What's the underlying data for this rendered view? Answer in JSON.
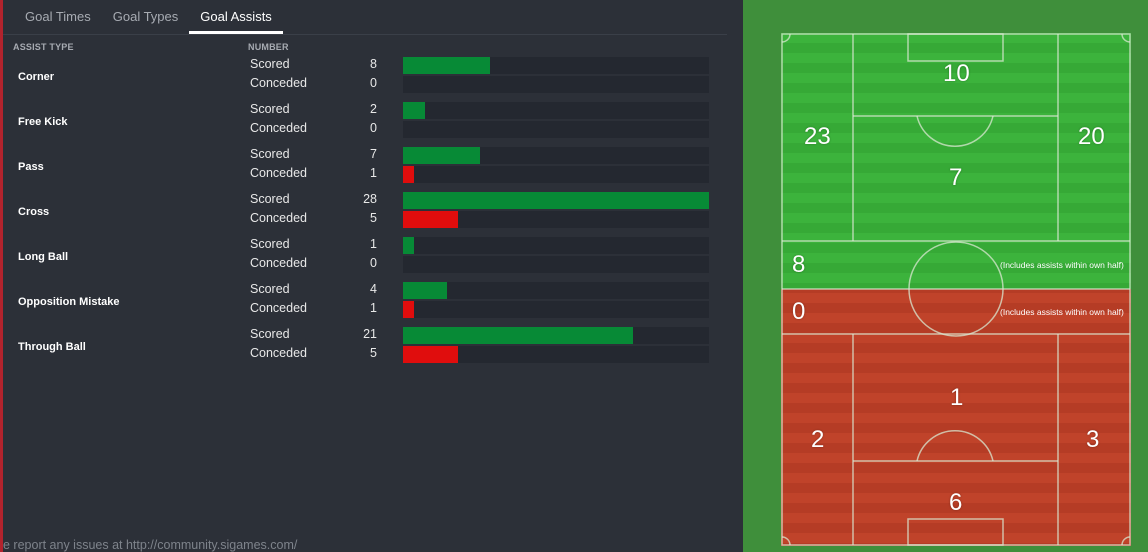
{
  "tabs": [
    "Goal Times",
    "Goal Types",
    "Goal Assists"
  ],
  "active_tab": "Goal Assists",
  "columns": {
    "assist_type": "ASSIST TYPE",
    "number": "NUMBER"
  },
  "scored_label": "Scored",
  "conceded_label": "Conceded",
  "max_value": 28,
  "rows": [
    {
      "type": "Corner",
      "scored": 8,
      "conceded": 0
    },
    {
      "type": "Free Kick",
      "scored": 2,
      "conceded": 0
    },
    {
      "type": "Pass",
      "scored": 7,
      "conceded": 1
    },
    {
      "type": "Cross",
      "scored": 28,
      "conceded": 5
    },
    {
      "type": "Long Ball",
      "scored": 1,
      "conceded": 0
    },
    {
      "type": "Opposition Mistake",
      "scored": 4,
      "conceded": 1
    },
    {
      "type": "Through Ball",
      "scored": 21,
      "conceded": 5
    }
  ],
  "footer": "e report any issues at http://community.sigames.com/",
  "pitch": {
    "top_box": "10",
    "top_left": "23",
    "top_center": "7",
    "top_right": "20",
    "own_half_scored": "8",
    "own_half_conceded": "0",
    "own_half_note": "(Includes assists within own half)",
    "bottom_center": "1",
    "bottom_left": "2",
    "bottom_right": "3",
    "bottom_box": "6"
  },
  "colors": {
    "scored": "#078a36",
    "conceded": "#e00d0d",
    "pitch_green": "#3cb33c",
    "pitch_red": "#c0432a"
  }
}
